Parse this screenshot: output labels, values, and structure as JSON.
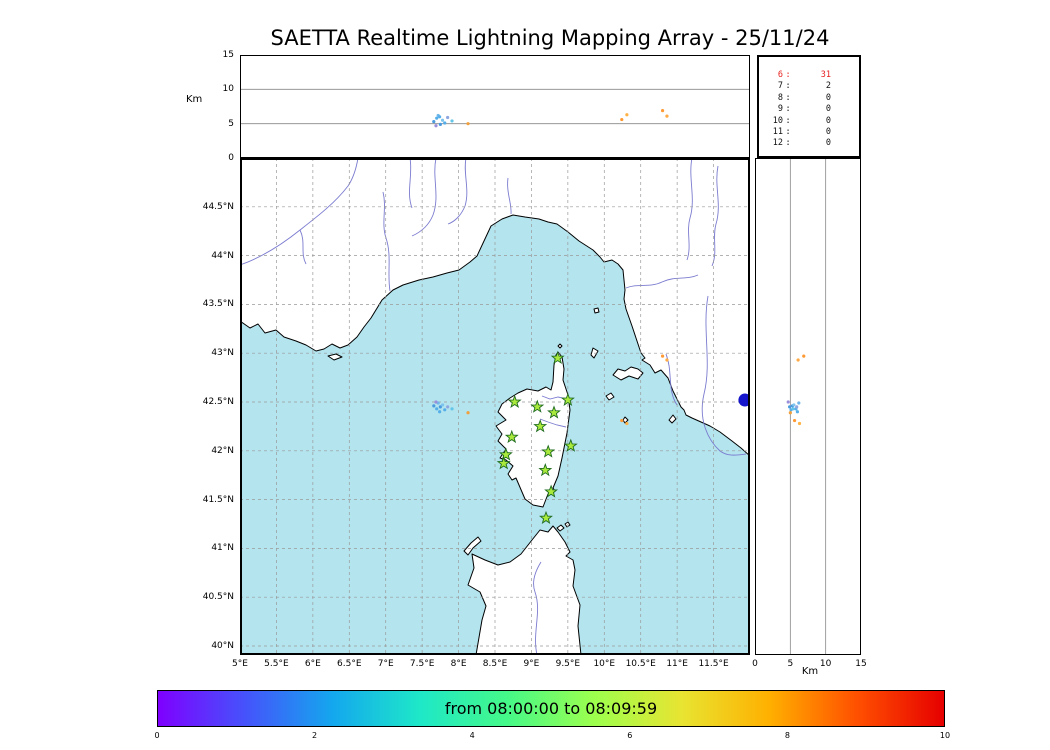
{
  "title": "SAETTA Realtime Lightning Mapping Array - 25/11/24",
  "axes": {
    "alt_axis_label_left": "Km",
    "alt_axis_label_right": "Km",
    "alt_ticks_left": [
      {
        "label": "15",
        "value": 15
      },
      {
        "label": "10",
        "value": 10
      },
      {
        "label": "5",
        "value": 5
      },
      {
        "label": "0",
        "value": 0
      }
    ],
    "alt_ticks_bottom": [
      {
        "label": "0",
        "value": 0
      },
      {
        "label": "5",
        "value": 5
      },
      {
        "label": "10",
        "value": 10
      },
      {
        "label": "15",
        "value": 15
      }
    ],
    "lat_ticks": [
      {
        "label": "44.5°N",
        "value": 44.5
      },
      {
        "label": "44°N",
        "value": 44
      },
      {
        "label": "43.5°N",
        "value": 43.5
      },
      {
        "label": "43°N",
        "value": 43
      },
      {
        "label": "42.5°N",
        "value": 42.5
      },
      {
        "label": "42°N",
        "value": 42
      },
      {
        "label": "41.5°N",
        "value": 41.5
      },
      {
        "label": "41°N",
        "value": 41
      },
      {
        "label": "40.5°N",
        "value": 40.5
      },
      {
        "label": "40°N",
        "value": 40
      }
    ],
    "lon_ticks": [
      {
        "label": "5°E",
        "value": 5
      },
      {
        "label": "5.5°E",
        "value": 5.5
      },
      {
        "label": "6°E",
        "value": 6
      },
      {
        "label": "6.5°E",
        "value": 6.5
      },
      {
        "label": "7°E",
        "value": 7
      },
      {
        "label": "7.5°E",
        "value": 7.5
      },
      {
        "label": "8°E",
        "value": 8
      },
      {
        "label": "8.5°E",
        "value": 8.5
      },
      {
        "label": "9°E",
        "value": 9
      },
      {
        "label": "9.5°E",
        "value": 9.5
      },
      {
        "label": "10°E",
        "value": 10
      },
      {
        "label": "10.5°E",
        "value": 10.5
      },
      {
        "label": "11°E",
        "value": 11
      },
      {
        "label": "11.5°E",
        "value": 11.5
      }
    ]
  },
  "counts_panel": {
    "rows": [
      {
        "hour": "6",
        "value": "31",
        "color": "#e82222"
      },
      {
        "hour": "7",
        "value": "2",
        "color": "#111111"
      },
      {
        "hour": "8",
        "value": "0",
        "color": "#111111"
      },
      {
        "hour": "9",
        "value": "0",
        "color": "#111111"
      },
      {
        "hour": "10",
        "value": "0",
        "color": "#111111"
      },
      {
        "hour": "11",
        "value": "0",
        "color": "#111111"
      },
      {
        "hour": "12",
        "value": "0",
        "color": "#111111"
      }
    ]
  },
  "colorbar": {
    "label": "from 08:00:00 to 08:09:59",
    "ticks": [
      {
        "label": "0",
        "value": 0
      },
      {
        "label": "2",
        "value": 2
      },
      {
        "label": "4",
        "value": 4
      },
      {
        "label": "6",
        "value": 6
      },
      {
        "label": "8",
        "value": 8
      },
      {
        "label": "10",
        "value": 10
      }
    ],
    "stops": [
      "#7f00ff",
      "#4553fb",
      "#14a7ee",
      "#1ee8c8",
      "#45f988",
      "#9dff4d",
      "#e8e431",
      "#ffb000",
      "#ff5000",
      "#e60000"
    ]
  },
  "colors": {
    "sea": "#b4e4ee",
    "land": "#ffffff",
    "coast": "#000000",
    "river": "#7b7bd0",
    "grid": "#999999",
    "station_fill": "#aaea3c",
    "station_edge": "#1e6b1e",
    "moon_marker": "#1515cc"
  },
  "chart_data": {
    "type": "scatter",
    "title": "SAETTA Realtime Lightning Mapping Array - 25/11/24",
    "panels": {
      "altitude_vs_longitude": {
        "ylabel": "Km",
        "xlim": [
          5,
          12
        ],
        "ylim": [
          0,
          15
        ],
        "gridlines_km": [
          5,
          10
        ]
      },
      "map_lon_lat": {
        "xlim": [
          5,
          12
        ],
        "ylim": [
          39.9,
          45.0
        ],
        "grid": "dashed every 0.5 degree"
      },
      "altitude_vs_latitude": {
        "xlabel": "Km",
        "xlim": [
          0,
          15
        ],
        "ylim": [
          39.9,
          45.0
        ],
        "gridlines_km": [
          5,
          10
        ]
      }
    },
    "lightning_points": [
      {
        "lon": 7.66,
        "lat": 42.46,
        "alt": 5.3,
        "color": "#4a9ade"
      },
      {
        "lon": 7.7,
        "lat": 42.43,
        "alt": 5.8,
        "color": "#55aee8"
      },
      {
        "lon": 7.72,
        "lat": 42.49,
        "alt": 6.2,
        "color": "#6fb6ea"
      },
      {
        "lon": 7.75,
        "lat": 42.45,
        "alt": 4.9,
        "color": "#4a9ade"
      },
      {
        "lon": 7.78,
        "lat": 42.47,
        "alt": 5.5,
        "color": "#7cc4ee"
      },
      {
        "lon": 7.81,
        "lat": 42.42,
        "alt": 5.1,
        "color": "#55aee8"
      },
      {
        "lon": 7.85,
        "lat": 42.45,
        "alt": 5.9,
        "color": "#8fa7e0"
      },
      {
        "lon": 7.69,
        "lat": 42.5,
        "alt": 4.7,
        "color": "#9b8fdc"
      },
      {
        "lon": 7.91,
        "lat": 42.43,
        "alt": 5.4,
        "color": "#63c6e8"
      },
      {
        "lon": 7.74,
        "lat": 42.4,
        "alt": 6.0,
        "color": "#55aee8"
      },
      {
        "lon": 8.13,
        "lat": 42.39,
        "alt": 5.0,
        "color": "#f0a03c"
      },
      {
        "lon": 10.8,
        "lat": 42.97,
        "alt": 6.9,
        "color": "#ff9933"
      },
      {
        "lon": 10.86,
        "lat": 42.93,
        "alt": 6.1,
        "color": "#ffaa44"
      },
      {
        "lon": 10.24,
        "lat": 42.31,
        "alt": 5.6,
        "color": "#ff9933"
      },
      {
        "lon": 10.31,
        "lat": 42.28,
        "alt": 6.3,
        "color": "#ffb347"
      }
    ],
    "stations_lonlat": [
      [
        9.36,
        42.95
      ],
      [
        8.77,
        42.5
      ],
      [
        9.08,
        42.45
      ],
      [
        9.5,
        42.52
      ],
      [
        9.31,
        42.39
      ],
      [
        9.12,
        42.25
      ],
      [
        8.73,
        42.14
      ],
      [
        9.54,
        42.05
      ],
      [
        8.65,
        41.96
      ],
      [
        8.62,
        41.87
      ],
      [
        9.23,
        41.99
      ],
      [
        9.19,
        41.8
      ],
      [
        9.27,
        41.58
      ],
      [
        9.2,
        41.31
      ]
    ],
    "moon_marker": {
      "lon": 11.93,
      "lat": 42.52,
      "radius_px": 6.5
    },
    "hourly_counts": [
      {
        "hour": 6,
        "count": 31
      },
      {
        "hour": 7,
        "count": 2
      },
      {
        "hour": 8,
        "count": 0
      },
      {
        "hour": 9,
        "count": 0
      },
      {
        "hour": 10,
        "count": 0
      },
      {
        "hour": 11,
        "count": 0
      },
      {
        "hour": 12,
        "count": 0
      }
    ],
    "colorbar": {
      "label": "from 08:00:00 to 08:09:59",
      "range_minutes": [
        0,
        10
      ]
    }
  }
}
